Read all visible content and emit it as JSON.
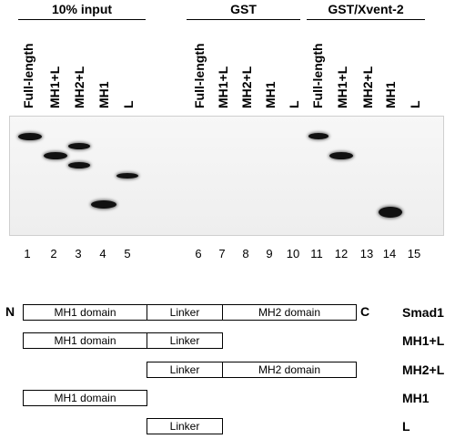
{
  "groups": [
    {
      "title": "10% input"
    },
    {
      "title": "GST"
    },
    {
      "title": "GST/Xvent-2"
    }
  ],
  "lane_labels": [
    "Full-length",
    "MH1+L",
    "MH2+L",
    "MH1",
    "L",
    "Full-length",
    "MH1+L",
    "MH2+L",
    "MH1",
    "L",
    "Full-length",
    "MH1+L",
    "MH2+L",
    "MH1",
    "L"
  ],
  "lane_numbers": [
    "1",
    "2",
    "3",
    "4",
    "5",
    "6",
    "7",
    "8",
    "9",
    "10",
    "11",
    "12",
    "13",
    "14",
    "15"
  ],
  "constructs": {
    "n_term": "N",
    "c_term": "C",
    "smad1": {
      "name": "Smad1",
      "mh1": "MH1 domain",
      "linker": "Linker",
      "mh2": "MH2 domain"
    },
    "mh1l": {
      "name": "MH1+L",
      "mh1": "MH1 domain",
      "linker": "Linker"
    },
    "mh2l": {
      "name": "MH2+L",
      "linker": "Linker",
      "mh2": "MH2 domain"
    },
    "mh1": {
      "name": "MH1",
      "mh1": "MH1 domain"
    },
    "l": {
      "name": "L",
      "linker": "Linker"
    }
  }
}
